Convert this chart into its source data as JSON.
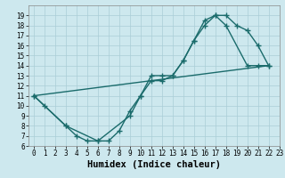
{
  "xlabel": "Humidex (Indice chaleur)",
  "xlim": [
    -0.5,
    23
  ],
  "ylim": [
    6,
    20
  ],
  "xticks": [
    0,
    1,
    2,
    3,
    4,
    5,
    6,
    7,
    8,
    9,
    10,
    11,
    12,
    13,
    14,
    15,
    16,
    17,
    18,
    19,
    20,
    21,
    22,
    23
  ],
  "yticks": [
    6,
    7,
    8,
    9,
    10,
    11,
    12,
    13,
    14,
    15,
    16,
    17,
    18,
    19
  ],
  "bg_color": "#cde8ee",
  "grid_color": "#aacdd6",
  "line_color": "#1a6b6b",
  "line1_x": [
    0,
    1,
    3,
    4,
    5,
    6,
    7,
    8,
    9,
    10,
    11,
    12,
    13,
    14,
    15,
    16,
    17,
    18,
    19,
    20,
    21,
    22
  ],
  "line1_y": [
    11,
    10,
    8,
    7,
    6.5,
    6.5,
    6.5,
    7.5,
    9.5,
    11,
    13,
    13,
    13,
    14.5,
    16.5,
    18.5,
    19,
    19,
    18,
    17.5,
    16,
    14
  ],
  "line2_x": [
    0,
    3,
    6,
    9,
    10,
    11,
    12,
    13,
    14,
    15,
    16,
    17,
    18,
    20,
    21,
    22
  ],
  "line2_y": [
    11,
    8,
    6.5,
    9,
    11,
    12.5,
    12.5,
    13,
    14.5,
    16.5,
    18,
    19,
    18,
    14,
    14,
    14
  ],
  "line3_x": [
    0,
    22
  ],
  "line3_y": [
    11,
    14
  ],
  "markersize": 4,
  "linewidth": 1.0,
  "tick_fontsize": 5.5,
  "xlabel_fontsize": 7.5
}
